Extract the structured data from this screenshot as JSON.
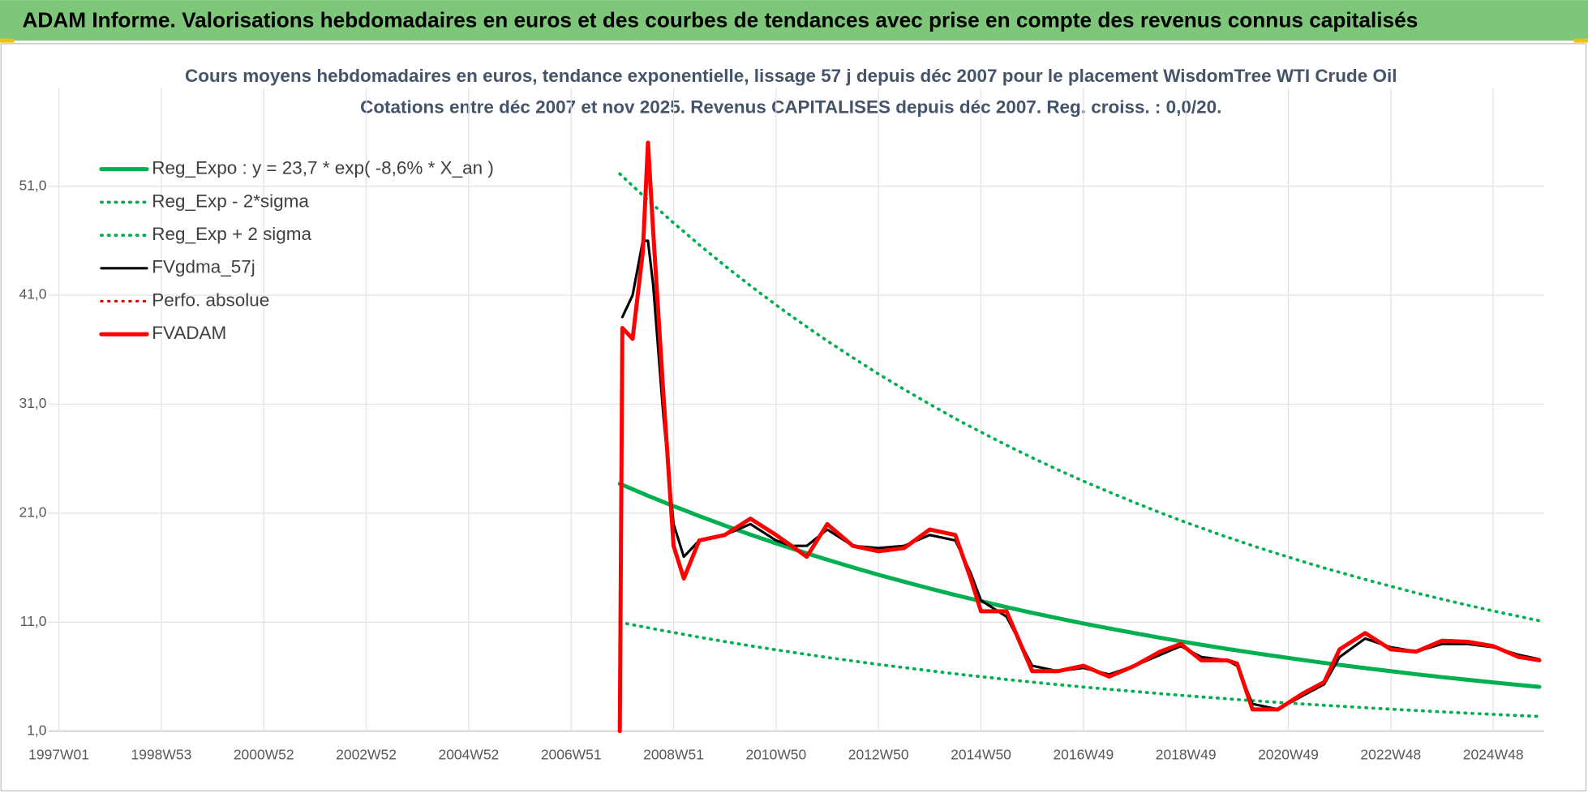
{
  "header": "ADAM Informe. Valorisations hebdomadaires en euros et des courbes de tendances avec prise en compte des revenus connus capitalisés",
  "chart_data": {
    "type": "line",
    "title": "Cours moyens hebdomadaires en euros, tendance exponentielle, lissage 57 j depuis déc 2007 pour le placement WisdomTree WTI Crude Oil",
    "subtitle": "Cotations entre déc 2007 et nov 2025. Revenus CAPITALISES depuis déc 2007. Reg. croiss. : 0,0/20.",
    "x": [
      2007.95,
      2008.0,
      2008.2,
      2008.4,
      2008.5,
      2008.6,
      2008.8,
      2009.0,
      2009.2,
      2009.5,
      2010.0,
      2010.5,
      2011.0,
      2011.3,
      2011.6,
      2012.0,
      2012.5,
      2013.0,
      2013.5,
      2014.0,
      2014.5,
      2014.8,
      2015.0,
      2015.5,
      2016.0,
      2016.5,
      2017.0,
      2017.5,
      2018.0,
      2018.5,
      2018.9,
      2019.3,
      2019.8,
      2020.0,
      2020.3,
      2020.8,
      2021.3,
      2021.7,
      2022.0,
      2022.5,
      2023.0,
      2023.5,
      2024.0,
      2024.5,
      2025.0,
      2025.5,
      2025.9
    ],
    "series": [
      {
        "name": "Reg_Expo : y = 23,7 * exp( -8,6% *  X_an )",
        "color": "#00b050",
        "dash": "solid",
        "width": 4,
        "values": [
          23.7,
          23.6,
          23.2,
          22.8,
          22.6,
          22.41,
          22.03,
          21.65,
          21.29,
          20.74,
          19.87,
          19.03,
          18.23,
          17.77,
          17.32,
          16.73,
          16.03,
          15.35,
          14.71,
          14.09,
          13.49,
          13.15,
          12.93,
          12.38,
          11.86,
          11.36,
          10.88,
          10.43,
          9.99,
          9.57,
          9.24,
          8.93,
          8.55,
          8.41,
          8.19,
          7.85,
          7.52,
          7.26,
          7.08,
          6.78,
          6.5,
          6.22,
          5.96,
          5.71,
          5.47,
          5.24,
          5.06
        ]
      },
      {
        "name": "Reg_Exp - 2*sigma",
        "color": "#00b050",
        "dash": "dotted",
        "width": 3,
        "values": [
          11.0,
          10.95,
          10.76,
          10.58,
          10.49,
          10.4,
          10.22,
          10.05,
          9.88,
          9.62,
          9.22,
          8.83,
          8.46,
          8.25,
          8.04,
          7.76,
          7.44,
          7.12,
          6.83,
          6.54,
          6.26,
          6.1,
          6.0,
          5.74,
          5.5,
          5.27,
          5.05,
          4.84,
          4.64,
          4.44,
          4.29,
          4.14,
          3.97,
          3.9,
          3.8,
          3.64,
          3.49,
          3.37,
          3.29,
          3.15,
          3.02,
          2.89,
          2.77,
          2.65,
          2.54,
          2.43,
          2.35
        ]
      },
      {
        "name": "Reg_Exp + 2 sigma",
        "color": "#00b050",
        "dash": "dotted",
        "width": 3,
        "values": [
          52.14,
          51.92,
          51.04,
          50.16,
          49.72,
          49.3,
          48.47,
          47.63,
          46.84,
          45.63,
          43.71,
          41.87,
          40.11,
          39.09,
          38.1,
          36.81,
          35.27,
          33.77,
          32.36,
          31.0,
          29.68,
          28.93,
          28.45,
          27.24,
          26.09,
          24.99,
          23.94,
          22.95,
          21.98,
          21.05,
          20.33,
          19.65,
          18.81,
          18.5,
          18.02,
          17.27,
          16.54,
          15.97,
          15.58,
          14.92,
          14.3,
          13.68,
          13.11,
          12.56,
          12.03,
          11.53,
          11.13
        ]
      },
      {
        "name": "FVgdma_57j",
        "color": "#000000",
        "dash": "solid",
        "width": 2.5,
        "values": [
          null,
          39,
          41,
          46,
          46,
          42,
          30,
          20,
          17,
          18.5,
          19,
          20,
          18.5,
          18,
          18,
          19.5,
          18,
          17.8,
          18,
          19,
          18.5,
          15.5,
          13,
          11.5,
          7,
          6.5,
          6.8,
          6.2,
          7,
          8,
          8.8,
          7.8,
          7.5,
          7,
          3.5,
          3,
          4.3,
          5.3,
          7.8,
          9.5,
          8.7,
          8.3,
          9,
          9,
          8.7,
          8,
          7.6
        ]
      },
      {
        "name": "Perfo. absolue",
        "color": "#e00000",
        "dash": "dotted",
        "width": 2.5,
        "values": [
          1,
          38,
          37,
          45,
          55,
          47,
          32,
          18,
          15,
          18.5,
          19,
          20.5,
          19,
          18,
          17,
          20,
          18,
          17.5,
          17.8,
          19.5,
          19,
          15,
          12,
          12,
          6.5,
          6.5,
          7,
          6,
          7,
          8.3,
          9,
          7.5,
          7.5,
          7.2,
          3,
          3,
          4.5,
          5.5,
          8.5,
          10,
          8.5,
          8.3,
          9.3,
          9.2,
          8.8,
          7.8,
          7.5
        ]
      },
      {
        "name": "FVADAM",
        "color": "#ff0000",
        "dash": "solid",
        "width": 4,
        "values": [
          1,
          38,
          37,
          45,
          55,
          47,
          32,
          18,
          15,
          18.5,
          19,
          20.5,
          19,
          18,
          17,
          20,
          18,
          17.5,
          17.8,
          19.5,
          19,
          15,
          12,
          12,
          6.5,
          6.5,
          7,
          6,
          7,
          8.3,
          9,
          7.5,
          7.5,
          7.2,
          3,
          3,
          4.5,
          5.5,
          8.5,
          10,
          8.5,
          8.3,
          9.3,
          9.2,
          8.8,
          7.8,
          7.5
        ]
      }
    ],
    "xlim": [
      1996.8,
      2026
    ],
    "ylim": [
      1,
      60
    ],
    "xticks": [
      {
        "value": 1997,
        "label": "1997W01"
      },
      {
        "value": 1999,
        "label": "1998W53"
      },
      {
        "value": 2001,
        "label": "2000W52"
      },
      {
        "value": 2003,
        "label": "2002W52"
      },
      {
        "value": 2005,
        "label": "2004W52"
      },
      {
        "value": 2007,
        "label": "2006W51"
      },
      {
        "value": 2009,
        "label": "2008W51"
      },
      {
        "value": 2011,
        "label": "2010W50"
      },
      {
        "value": 2013,
        "label": "2012W50"
      },
      {
        "value": 2015,
        "label": "2014W50"
      },
      {
        "value": 2017,
        "label": "2016W49"
      },
      {
        "value": 2019,
        "label": "2018W49"
      },
      {
        "value": 2021,
        "label": "2020W49"
      },
      {
        "value": 2023,
        "label": "2022W48"
      },
      {
        "value": 2025,
        "label": "2024W48"
      }
    ],
    "yticks": [
      {
        "value": 1,
        "label": "1,0"
      },
      {
        "value": 11,
        "label": "11,0"
      },
      {
        "value": 21,
        "label": "21,0"
      },
      {
        "value": 31,
        "label": "31,0"
      },
      {
        "value": 41,
        "label": "41,0"
      },
      {
        "value": 51,
        "label": "51,0"
      }
    ],
    "grid": true,
    "legend": "top-left"
  }
}
